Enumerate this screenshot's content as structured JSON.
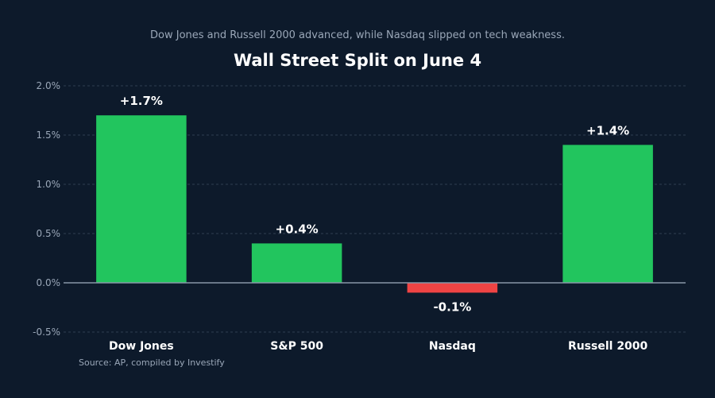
{
  "header": {
    "subtitle": "Dow Jones and Russell 2000 advanced, while Nasdaq slipped on tech weakness.",
    "title": "Wall Street Split on June 4"
  },
  "footer": {
    "source": "Source: AP, compiled by Investify"
  },
  "colors": {
    "background": "#0d1a2b",
    "positive": "#22c55e",
    "negative": "#ef4444",
    "grid": "#2e3d52",
    "zero_line": "#8896a8"
  },
  "chart_data": {
    "type": "bar",
    "title": "Wall Street Split on June 4",
    "subtitle": "Dow Jones and Russell 2000 advanced, while Nasdaq slipped on tech weakness.",
    "categories": [
      "Dow Jones",
      "S&P 500",
      "Nasdaq",
      "Russell 2000"
    ],
    "values": [
      1.7,
      0.4,
      -0.1,
      1.4
    ],
    "value_labels": [
      "+1.7%",
      "+0.4%",
      "-0.1%",
      "+1.4%"
    ],
    "unit": "%",
    "ylim": [
      -0.5,
      2.0
    ],
    "yticks": [
      -0.5,
      0.0,
      0.5,
      1.0,
      1.5,
      2.0
    ],
    "ytick_labels": [
      "-0.5%",
      "0.0%",
      "0.5%",
      "1.0%",
      "1.5%",
      "2.0%"
    ],
    "xlabel": "",
    "ylabel": "",
    "grid": true,
    "legend": "none"
  }
}
